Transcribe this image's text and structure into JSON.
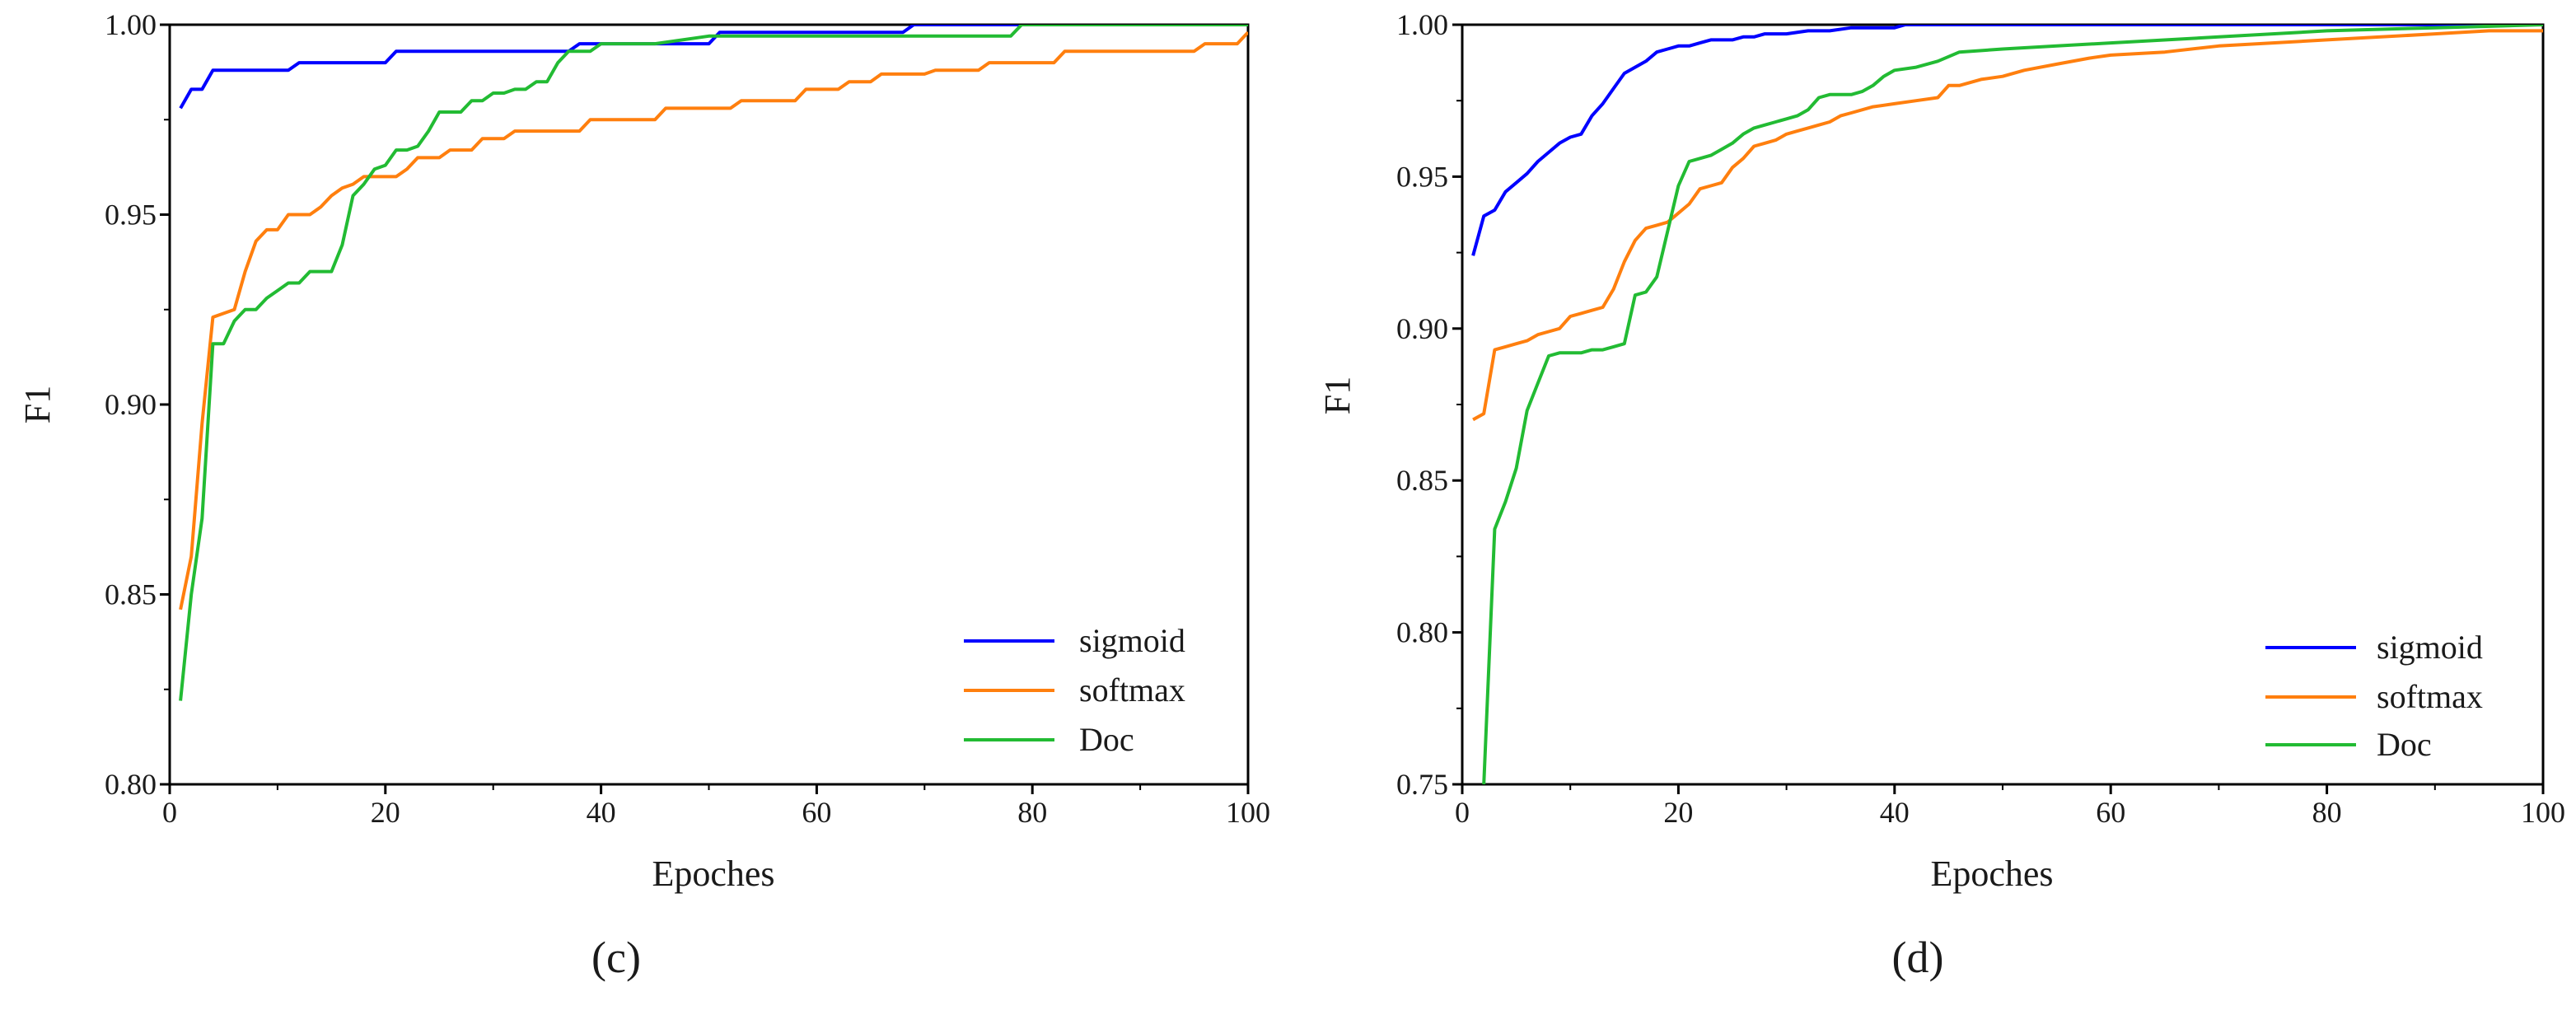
{
  "chart_data": [
    {
      "type": "line",
      "caption": "(c)",
      "xlabel": "Epoches",
      "ylabel": "F1",
      "xlim": [
        0,
        100
      ],
      "ylim": [
        0.8,
        1.0
      ],
      "xticks": [
        0,
        20,
        40,
        60,
        80,
        100
      ],
      "xtick_labels": [
        "0",
        "20",
        "40",
        "60",
        "80",
        "100"
      ],
      "yticks": [
        0.8,
        0.85,
        0.9,
        0.95,
        1.0
      ],
      "ytick_labels": [
        "0.80",
        "0.85",
        "0.90",
        "0.95",
        "1.00"
      ],
      "grid": false,
      "legend_position": "bottom-right",
      "series": [
        {
          "name": "sigmoid",
          "color": "#0000ff",
          "x": [
            1,
            2,
            3,
            4,
            5,
            11,
            12,
            20,
            21,
            37,
            38,
            40,
            50,
            51,
            68,
            69,
            79,
            100
          ],
          "y": [
            0.978,
            0.983,
            0.983,
            0.988,
            0.988,
            0.988,
            0.99,
            0.99,
            0.993,
            0.993,
            0.995,
            0.995,
            0.995,
            0.998,
            0.998,
            1.0,
            1.0,
            1.0
          ]
        },
        {
          "name": "softmax",
          "color": "#ff7f0e",
          "x": [
            1,
            2,
            3,
            4,
            6,
            7,
            8,
            9,
            10,
            11,
            12,
            13,
            14,
            15,
            16,
            17,
            18,
            19,
            20,
            21,
            22,
            23,
            25,
            26,
            28,
            29,
            31,
            32,
            38,
            39,
            45,
            46,
            52,
            53,
            58,
            59,
            62,
            63,
            65,
            66,
            70,
            71,
            75,
            76,
            82,
            83,
            95,
            96,
            99,
            100
          ],
          "y": [
            0.846,
            0.86,
            0.895,
            0.923,
            0.925,
            0.935,
            0.943,
            0.946,
            0.946,
            0.95,
            0.95,
            0.95,
            0.952,
            0.955,
            0.957,
            0.958,
            0.96,
            0.96,
            0.96,
            0.96,
            0.962,
            0.965,
            0.965,
            0.967,
            0.967,
            0.97,
            0.97,
            0.972,
            0.972,
            0.975,
            0.975,
            0.978,
            0.978,
            0.98,
            0.98,
            0.983,
            0.983,
            0.985,
            0.985,
            0.987,
            0.987,
            0.988,
            0.988,
            0.99,
            0.99,
            0.993,
            0.993,
            0.995,
            0.995,
            0.998
          ]
        },
        {
          "name": "Doc",
          "color": "#22bb33",
          "x": [
            1,
            2,
            3,
            4,
            5,
            6,
            7,
            8,
            9,
            10,
            11,
            12,
            13,
            14,
            15,
            16,
            17,
            18,
            19,
            20,
            21,
            22,
            23,
            24,
            25,
            26,
            27,
            28,
            29,
            30,
            31,
            32,
            33,
            34,
            35,
            36,
            37,
            38,
            39,
            40,
            41,
            45,
            50,
            78,
            79,
            100
          ],
          "y": [
            0.822,
            0.85,
            0.87,
            0.916,
            0.916,
            0.922,
            0.925,
            0.925,
            0.928,
            0.93,
            0.932,
            0.932,
            0.935,
            0.935,
            0.935,
            0.942,
            0.955,
            0.958,
            0.962,
            0.963,
            0.967,
            0.967,
            0.968,
            0.972,
            0.977,
            0.977,
            0.977,
            0.98,
            0.98,
            0.982,
            0.982,
            0.983,
            0.983,
            0.985,
            0.985,
            0.99,
            0.993,
            0.993,
            0.993,
            0.995,
            0.995,
            0.995,
            0.997,
            0.997,
            1.0,
            1.0
          ]
        }
      ]
    },
    {
      "type": "line",
      "caption": "(d)",
      "xlabel": "Epoches",
      "ylabel": "F1",
      "xlim": [
        0,
        100
      ],
      "ylim": [
        0.75,
        1.0
      ],
      "xticks": [
        0,
        20,
        40,
        60,
        80,
        100
      ],
      "xtick_labels": [
        "0",
        "20",
        "40",
        "60",
        "80",
        "100"
      ],
      "yticks": [
        0.75,
        0.8,
        0.85,
        0.9,
        0.95,
        1.0
      ],
      "ytick_labels": [
        "0.75",
        "0.80",
        "0.85",
        "0.90",
        "0.95",
        "1.00"
      ],
      "grid": false,
      "legend_position": "bottom-right",
      "series": [
        {
          "name": "sigmoid",
          "color": "#0000ff",
          "x": [
            1,
            2,
            3,
            4,
            5,
            6,
            7,
            8,
            9,
            10,
            11,
            12,
            13,
            14,
            15,
            16,
            17,
            18,
            19,
            20,
            21,
            22,
            23,
            24,
            25,
            26,
            27,
            28,
            29,
            30,
            32,
            34,
            36,
            38,
            40,
            41,
            100
          ],
          "y": [
            0.924,
            0.937,
            0.939,
            0.945,
            0.948,
            0.951,
            0.955,
            0.958,
            0.961,
            0.963,
            0.964,
            0.97,
            0.974,
            0.979,
            0.984,
            0.986,
            0.988,
            0.991,
            0.992,
            0.993,
            0.993,
            0.994,
            0.995,
            0.995,
            0.995,
            0.996,
            0.996,
            0.997,
            0.997,
            0.997,
            0.998,
            0.998,
            0.999,
            0.999,
            0.999,
            1.0,
            1.0
          ]
        },
        {
          "name": "softmax",
          "color": "#ff7f0e",
          "x": [
            1,
            2,
            3,
            4,
            5,
            6,
            7,
            8,
            9,
            10,
            11,
            12,
            13,
            14,
            15,
            16,
            17,
            18,
            19,
            20,
            21,
            22,
            23,
            24,
            25,
            26,
            27,
            28,
            29,
            30,
            31,
            32,
            33,
            34,
            35,
            36,
            38,
            40,
            42,
            44,
            45,
            46,
            48,
            50,
            52,
            55,
            58,
            60,
            65,
            70,
            75,
            80,
            85,
            90,
            95,
            100
          ],
          "y": [
            0.87,
            0.872,
            0.893,
            0.894,
            0.895,
            0.896,
            0.898,
            0.899,
            0.9,
            0.904,
            0.905,
            0.906,
            0.907,
            0.913,
            0.922,
            0.929,
            0.933,
            0.934,
            0.935,
            0.938,
            0.941,
            0.946,
            0.947,
            0.948,
            0.953,
            0.956,
            0.96,
            0.961,
            0.962,
            0.964,
            0.965,
            0.966,
            0.967,
            0.968,
            0.97,
            0.971,
            0.973,
            0.974,
            0.975,
            0.976,
            0.98,
            0.98,
            0.982,
            0.983,
            0.985,
            0.987,
            0.989,
            0.99,
            0.991,
            0.993,
            0.994,
            0.995,
            0.996,
            0.997,
            0.998,
            0.998
          ]
        },
        {
          "name": "Doc",
          "color": "#22bb33",
          "x": [
            2,
            3,
            4,
            5,
            6,
            7,
            8,
            9,
            10,
            11,
            12,
            13,
            14,
            15,
            16,
            17,
            18,
            19,
            20,
            21,
            22,
            23,
            24,
            25,
            26,
            27,
            28,
            29,
            30,
            31,
            32,
            33,
            34,
            35,
            36,
            37,
            38,
            39,
            40,
            42,
            44,
            46,
            50,
            55,
            60,
            70,
            80,
            90,
            100
          ],
          "y": [
            0.75,
            0.834,
            0.843,
            0.854,
            0.873,
            0.882,
            0.891,
            0.892,
            0.892,
            0.892,
            0.893,
            0.893,
            0.894,
            0.895,
            0.911,
            0.912,
            0.917,
            0.932,
            0.947,
            0.955,
            0.956,
            0.957,
            0.959,
            0.961,
            0.964,
            0.966,
            0.967,
            0.968,
            0.969,
            0.97,
            0.972,
            0.976,
            0.977,
            0.977,
            0.977,
            0.978,
            0.98,
            0.983,
            0.985,
            0.986,
            0.988,
            0.991,
            0.992,
            0.993,
            0.994,
            0.996,
            0.998,
            0.999,
            1.0
          ]
        }
      ]
    }
  ]
}
